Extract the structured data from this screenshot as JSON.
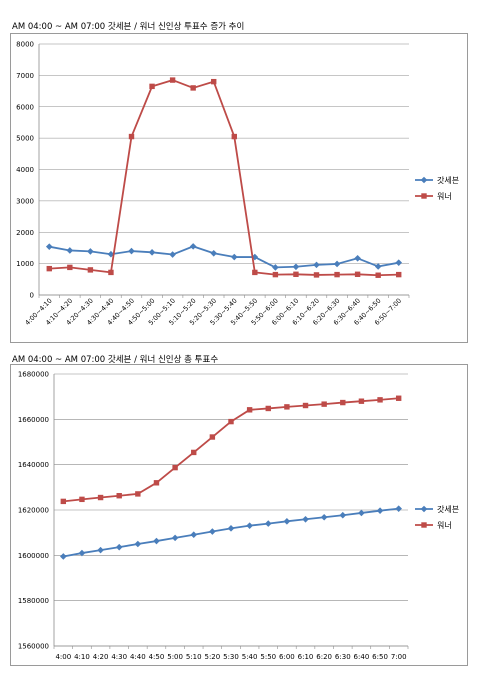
{
  "chart_data": [
    {
      "type": "line",
      "title": "AM 04:00 ~ AM 07:00 갓세븐 / 워너 신인상 투표수 증가 추이",
      "xlabel": "",
      "ylabel": "",
      "categories": [
        "4:00~4:10",
        "4:10~4:20",
        "4:20~4:30",
        "4:30~4:40",
        "4:40~4:50",
        "4:50~5:00",
        "5:00~5:10",
        "5:10~5:20",
        "5:20~5:30",
        "5:30~5:40",
        "5:40~5:50",
        "5:50~6:00",
        "6:00~6:10",
        "6:10~6:20",
        "6:20~6:30",
        "6:30~6:40",
        "6:40~6:50",
        "6:50~7:00"
      ],
      "ylim": [
        0,
        8000
      ],
      "yticks": [
        "0",
        "1000",
        "2000",
        "3000",
        "4000",
        "5000",
        "6000",
        "7000",
        "8000"
      ],
      "grid": true,
      "legend": "right",
      "series": [
        {
          "name": "갓세븐",
          "color": "#4a7ebb",
          "marker": "diamond",
          "values": [
            1540,
            1420,
            1390,
            1300,
            1400,
            1360,
            1290,
            1550,
            1330,
            1210,
            1210,
            880,
            900,
            960,
            990,
            1170,
            910,
            1030
          ]
        },
        {
          "name": "워너",
          "color": "#be4b48",
          "marker": "square",
          "values": [
            840,
            880,
            800,
            720,
            5050,
            6650,
            6850,
            6600,
            6800,
            5050,
            720,
            650,
            660,
            640,
            650,
            660,
            630,
            650
          ]
        }
      ]
    },
    {
      "type": "line",
      "title": "AM 04:00 ~ AM 07:00 갓세븐 / 워너 신인상 총 투표수",
      "xlabel": "",
      "ylabel": "",
      "categories": [
        "4:00",
        "4:10",
        "4:20",
        "4:30",
        "4:40",
        "4:50",
        "5:00",
        "5:10",
        "5:20",
        "5:30",
        "5:40",
        "5:50",
        "6:00",
        "6:10",
        "6:20",
        "6:30",
        "6:40",
        "6:50",
        "7:00"
      ],
      "ylim": [
        1560000,
        1680000
      ],
      "yticks": [
        "1560000",
        "1580000",
        "1600000",
        "1620000",
        "1640000",
        "1660000",
        "1680000"
      ],
      "grid": true,
      "legend": "right",
      "series": [
        {
          "name": "갓세븐",
          "color": "#4a7ebb",
          "marker": "diamond",
          "values": [
            1599500,
            1601000,
            1602300,
            1603600,
            1605000,
            1606300,
            1607700,
            1609100,
            1610500,
            1611900,
            1613100,
            1614000,
            1615000,
            1615900,
            1616800,
            1617700,
            1618700,
            1619700,
            1620600
          ]
        },
        {
          "name": "워너",
          "color": "#be4b48",
          "marker": "square",
          "values": [
            1623800,
            1624700,
            1625500,
            1626300,
            1627100,
            1632000,
            1638700,
            1645400,
            1652200,
            1659000,
            1664200,
            1664800,
            1665500,
            1666100,
            1666700,
            1667400,
            1668000,
            1668600,
            1669300
          ]
        }
      ]
    }
  ]
}
